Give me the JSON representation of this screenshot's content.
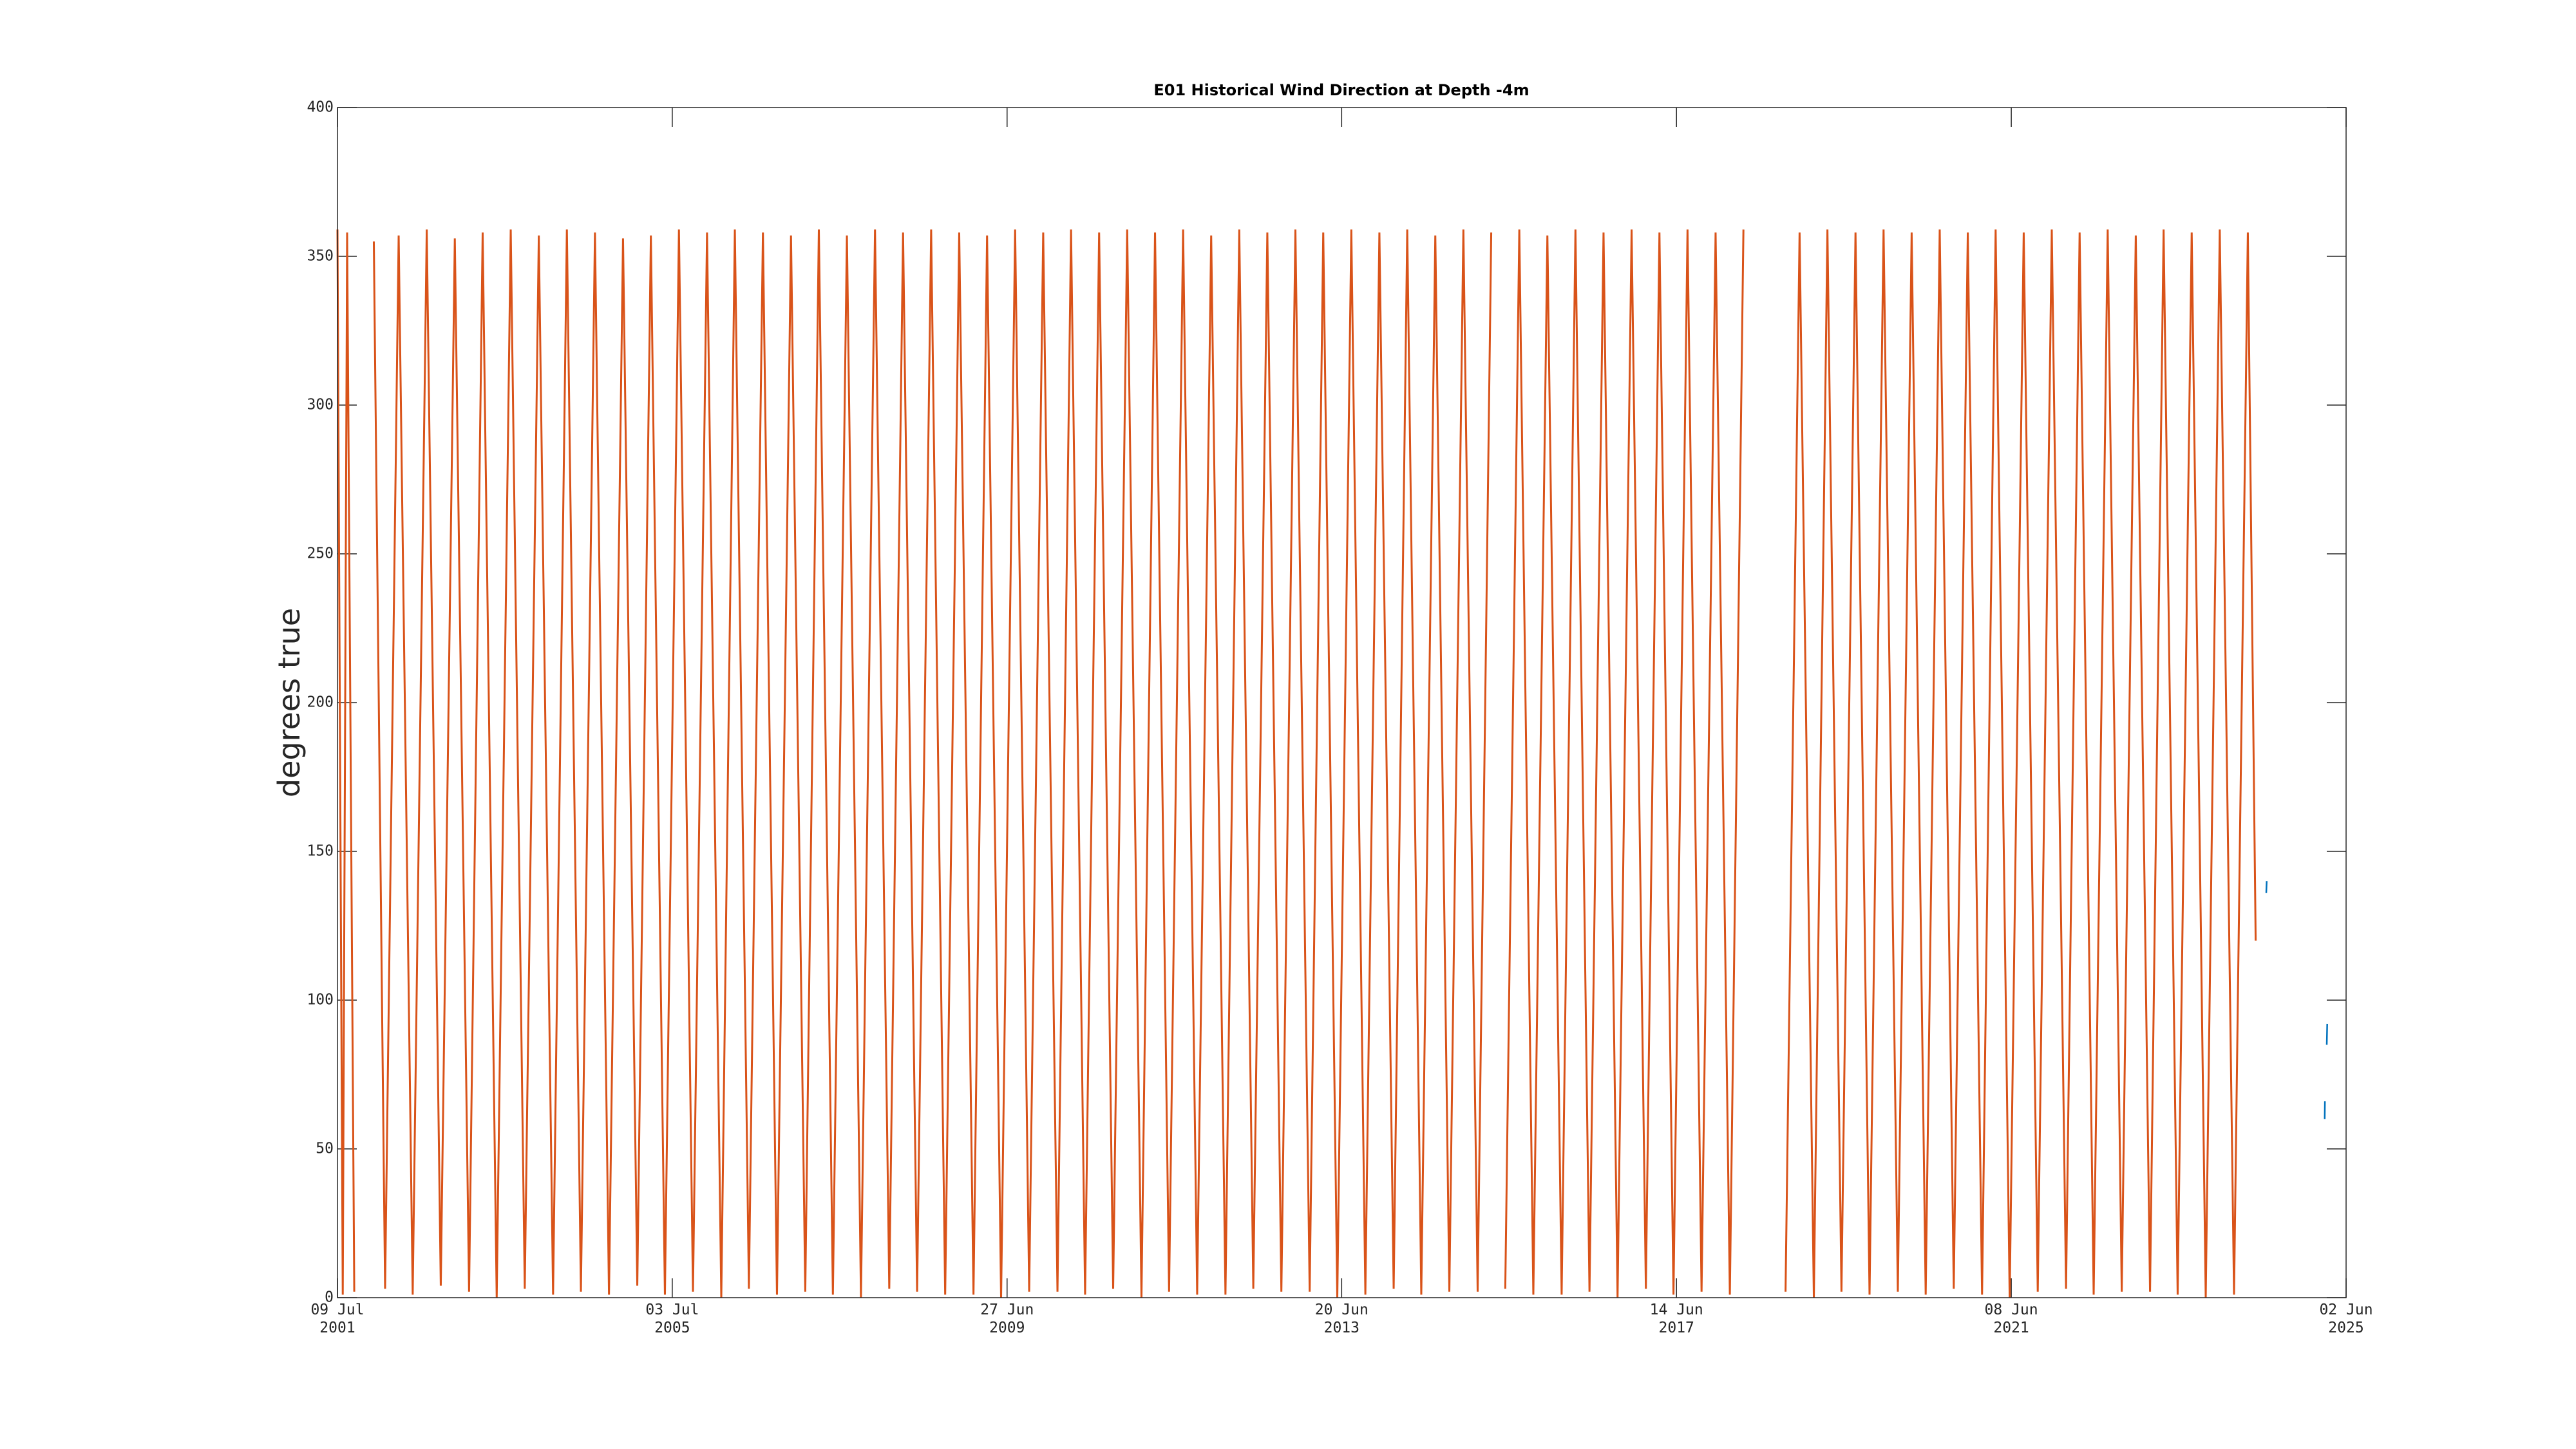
{
  "chart_data": {
    "type": "line",
    "title": "E01 Historical Wind Direction at Depth -4m",
    "y_label": "degrees true",
    "xlim": [
      "2001-07-09",
      "2025-06-02"
    ],
    "xticks": [
      {
        "value": "2001-07-09",
        "label": "09 Jul\n2001"
      },
      {
        "value": "2005-07-03",
        "label": "03 Jul\n2005"
      },
      {
        "value": "2009-06-27",
        "label": "27 Jun\n2009"
      },
      {
        "value": "2013-06-20",
        "label": "20 Jun\n2013"
      },
      {
        "value": "2017-06-14",
        "label": "14 Jun\n2017"
      },
      {
        "value": "2021-06-08",
        "label": "08 Jun\n2021"
      },
      {
        "value": "2025-06-02",
        "label": "02 Jun\n2025"
      }
    ],
    "ylim": [
      0,
      400
    ],
    "yticks": [
      0,
      50,
      100,
      150,
      200,
      250,
      300,
      350,
      400
    ],
    "series": [
      {
        "color": "#d95319",
        "x": [
          "2001-07-09",
          "2001-08-01",
          "2001-08-20",
          "2001-09-20",
          "2001-11-01",
          "2001-12-14",
          "2002-02-01",
          "2002-04-01",
          "2002-06-01",
          "2002-08-01",
          "2002-10-01",
          "2002-12-01",
          "2003-02-01",
          "2003-04-01",
          "2003-06-01",
          "2003-08-01",
          "2003-10-01",
          "2003-12-01",
          "2004-02-01",
          "2004-04-01",
          "2004-06-01",
          "2004-08-01",
          "2004-10-01",
          "2004-12-01",
          "2005-02-01",
          "2005-04-01",
          "2005-06-01",
          "2005-08-01",
          "2005-10-01",
          "2005-12-01",
          "2006-02-01",
          "2006-04-01",
          "2006-06-01",
          "2006-08-01",
          "2006-10-01",
          "2006-12-01",
          "2007-02-01",
          "2007-04-01",
          "2007-06-01",
          "2007-08-01",
          "2007-10-01",
          "2007-12-01",
          "2008-02-01",
          "2008-04-01",
          "2008-06-01",
          "2008-08-01",
          "2008-10-01",
          "2008-12-01",
          "2009-02-01",
          "2009-04-01",
          "2009-06-01",
          "2009-08-01",
          "2009-10-01",
          "2009-12-01",
          "2010-02-01",
          "2010-04-01",
          "2010-06-01",
          "2010-08-01",
          "2010-10-01",
          "2010-12-01",
          "2011-02-01",
          "2011-04-01",
          "2011-06-01",
          "2011-08-01",
          "2011-10-01",
          "2011-12-01",
          "2012-02-01",
          "2012-04-01",
          "2012-06-01",
          "2012-08-01",
          "2012-10-01",
          "2012-12-01",
          "2013-02-01",
          "2013-04-01",
          "2013-06-01",
          "2013-08-01",
          "2013-10-01",
          "2013-12-01",
          "2014-02-01",
          "2014-04-01",
          "2014-06-01",
          "2014-08-01",
          "2014-10-01",
          "2014-12-01",
          "2015-02-01",
          "2015-04-01",
          "2015-04-20",
          "2015-06-01",
          "2015-08-01",
          "2015-10-01",
          "2015-12-01",
          "2016-02-01",
          "2016-04-01",
          "2016-06-01",
          "2016-08-01",
          "2016-10-01",
          "2016-12-01",
          "2017-02-01",
          "2017-04-01",
          "2017-06-01",
          "2017-08-01",
          "2017-10-01",
          "2017-12-01",
          "2018-02-01",
          "2018-04-01",
          "2018-06-01",
          "2018-10-01",
          "2018-12-01",
          "2019-02-01",
          "2019-04-01",
          "2019-06-01",
          "2019-08-01",
          "2019-10-01",
          "2019-12-01",
          "2020-02-01",
          "2020-04-01",
          "2020-06-01",
          "2020-08-01",
          "2020-10-01",
          "2020-12-01",
          "2021-02-01",
          "2021-04-01",
          "2021-06-01",
          "2021-08-01",
          "2021-10-01",
          "2021-12-01",
          "2022-02-01",
          "2022-04-01",
          "2022-06-01",
          "2022-08-01",
          "2022-10-01",
          "2022-12-01",
          "2023-02-01",
          "2023-04-01",
          "2023-06-01",
          "2023-08-01",
          "2023-10-01",
          "2023-12-01",
          "2024-02-01",
          "2024-04-01",
          "2024-05-05"
        ],
        "values": [
          359,
          1,
          358,
          2,
          null,
          355,
          3,
          357,
          1,
          359,
          4,
          356,
          2,
          358,
          0,
          359,
          3,
          357,
          1,
          359,
          2,
          358,
          1,
          356,
          4,
          357,
          1,
          359,
          2,
          358,
          0,
          359,
          3,
          358,
          1,
          357,
          2,
          359,
          1,
          357,
          0,
          359,
          3,
          358,
          2,
          359,
          1,
          358,
          1,
          357,
          0,
          359,
          2,
          358,
          2,
          359,
          1,
          358,
          3,
          359,
          0,
          358,
          2,
          359,
          1,
          357,
          1,
          359,
          3,
          358,
          2,
          359,
          2,
          358,
          0,
          359,
          1,
          358,
          3,
          359,
          1,
          357,
          2,
          359,
          2,
          358,
          null,
          3,
          359,
          1,
          357,
          1,
          359,
          2,
          358,
          0,
          359,
          3,
          358,
          1,
          359,
          2,
          358,
          1,
          359,
          null,
          2,
          358,
          0,
          359,
          2,
          358,
          1,
          359,
          2,
          358,
          1,
          359,
          3,
          358,
          1,
          359,
          0,
          358,
          2,
          359,
          3,
          358,
          1,
          359,
          2,
          357,
          2,
          359,
          1,
          358,
          0,
          359,
          1,
          358,
          120
        ]
      },
      {
        "color": "#0072bd",
        "x": [
          "2024-06-20",
          "2024-06-22",
          "2024-09-01",
          "2025-03-01",
          "2025-03-02",
          "2025-03-05",
          "2025-03-10",
          "2025-03-12"
        ],
        "values": [
          136,
          140,
          null,
          60,
          66,
          null,
          85,
          92
        ]
      }
    ]
  }
}
